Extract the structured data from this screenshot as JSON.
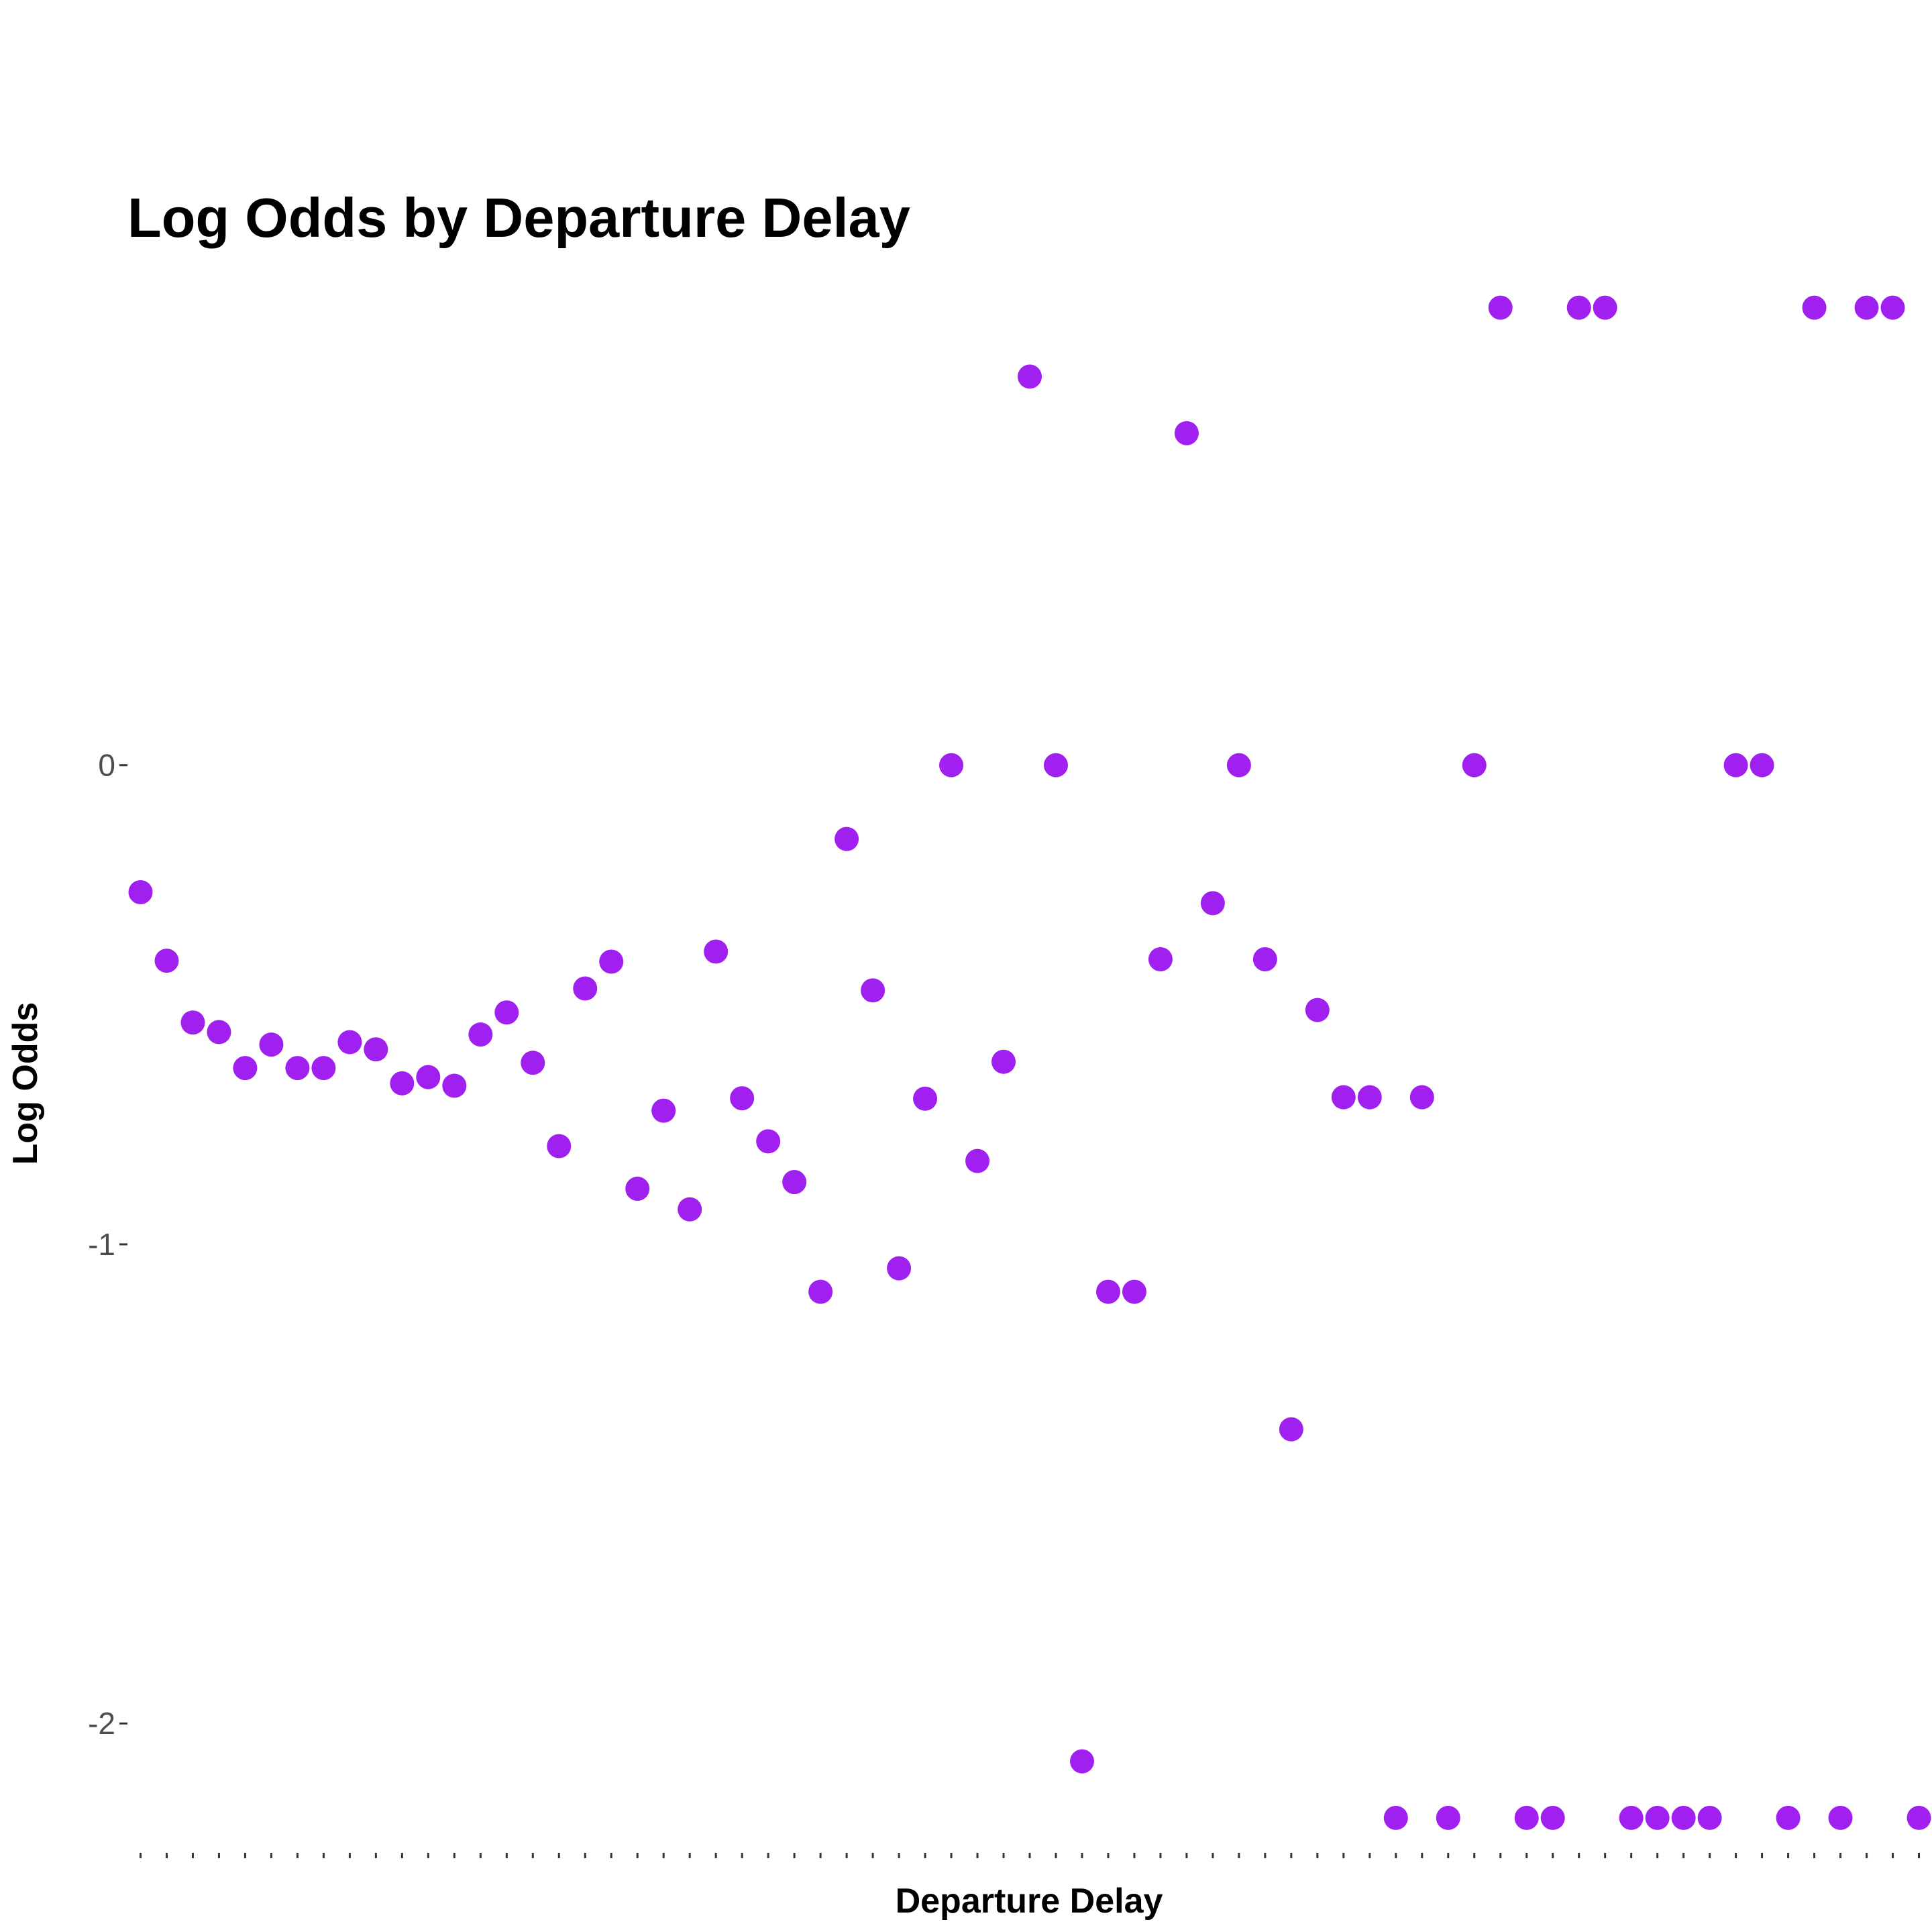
{
  "chart_data": {
    "type": "scatter",
    "title": "Log Odds by Departure Delay",
    "xlabel": "Departure Delay",
    "ylabel": "Log Odds",
    "marker_color": "#a020f0",
    "background": "#ffffff",
    "grid": false,
    "legend": "none",
    "x_tick_labels_shown": false,
    "x_categories_count": 69,
    "ylim": [
      -2.27,
      0.96
    ],
    "y_ticks": [
      {
        "value": 0,
        "label": "0"
      },
      {
        "value": -1,
        "label": "-1"
      },
      {
        "value": -2,
        "label": "-2"
      }
    ],
    "points": [
      {
        "x": 1,
        "y": -0.265
      },
      {
        "x": 2,
        "y": -0.408
      },
      {
        "x": 3,
        "y": -0.537
      },
      {
        "x": 4,
        "y": -0.557
      },
      {
        "x": 5,
        "y": -0.632
      },
      {
        "x": 6,
        "y": -0.583
      },
      {
        "x": 7,
        "y": -0.632
      },
      {
        "x": 8,
        "y": -0.632
      },
      {
        "x": 9,
        "y": -0.578
      },
      {
        "x": 10,
        "y": -0.593
      },
      {
        "x": 11,
        "y": -0.664
      },
      {
        "x": 12,
        "y": -0.651
      },
      {
        "x": 13,
        "y": -0.669
      },
      {
        "x": 14,
        "y": -0.562
      },
      {
        "x": 15,
        "y": -0.516
      },
      {
        "x": 16,
        "y": -0.621
      },
      {
        "x": 17,
        "y": -0.795
      },
      {
        "x": 18,
        "y": -0.466
      },
      {
        "x": 19,
        "y": -0.41
      },
      {
        "x": 20,
        "y": -0.884
      },
      {
        "x": 21,
        "y": -0.721
      },
      {
        "x": 22,
        "y": -0.927
      },
      {
        "x": 23,
        "y": -0.389
      },
      {
        "x": 24,
        "y": -0.695
      },
      {
        "x": 25,
        "y": -0.785
      },
      {
        "x": 26,
        "y": -0.87
      },
      {
        "x": 27,
        "y": -1.099
      },
      {
        "x": 28,
        "y": -0.154
      },
      {
        "x": 29,
        "y": -0.47
      },
      {
        "x": 30,
        "y": -1.05
      },
      {
        "x": 31,
        "y": -0.696
      },
      {
        "x": 32,
        "y": 0
      },
      {
        "x": 33,
        "y": -0.826
      },
      {
        "x": 34,
        "y": -0.619
      },
      {
        "x": 35,
        "y": 0.811
      },
      {
        "x": 36,
        "y": 0
      },
      {
        "x": 37,
        "y": -2.079
      },
      {
        "x": 38,
        "y": -1.099
      },
      {
        "x": 39,
        "y": -1.099
      },
      {
        "x": 40,
        "y": -0.405
      },
      {
        "x": 41,
        "y": 0.693
      },
      {
        "x": 42,
        "y": -0.288
      },
      {
        "x": 43,
        "y": 0
      },
      {
        "x": 44,
        "y": -0.405
      },
      {
        "x": 45,
        "y": -1.386
      },
      {
        "x": 46,
        "y": -0.511
      },
      {
        "x": 47,
        "y": -0.693
      },
      {
        "x": 48,
        "y": -0.693
      },
      {
        "x": 49,
        "y": -2.197
      },
      {
        "x": 50,
        "y": -0.693
      },
      {
        "x": 51,
        "y": -2.197
      },
      {
        "x": 52,
        "y": 0
      },
      {
        "x": 53,
        "y": 0.955
      },
      {
        "x": 54,
        "y": -2.197
      },
      {
        "x": 55,
        "y": -2.197
      },
      {
        "x": 56,
        "y": 0.955
      },
      {
        "x": 57,
        "y": 0.955
      },
      {
        "x": 58,
        "y": -2.197
      },
      {
        "x": 59,
        "y": -2.197
      },
      {
        "x": 60,
        "y": -2.197
      },
      {
        "x": 61,
        "y": -2.197
      },
      {
        "x": 62,
        "y": 0
      },
      {
        "x": 63,
        "y": 0
      },
      {
        "x": 64,
        "y": -2.197
      },
      {
        "x": 65,
        "y": 0.955
      },
      {
        "x": 66,
        "y": -2.197
      },
      {
        "x": 67,
        "y": 0.955
      },
      {
        "x": 68,
        "y": 0.955
      },
      {
        "x": 69,
        "y": -2.197
      }
    ]
  }
}
